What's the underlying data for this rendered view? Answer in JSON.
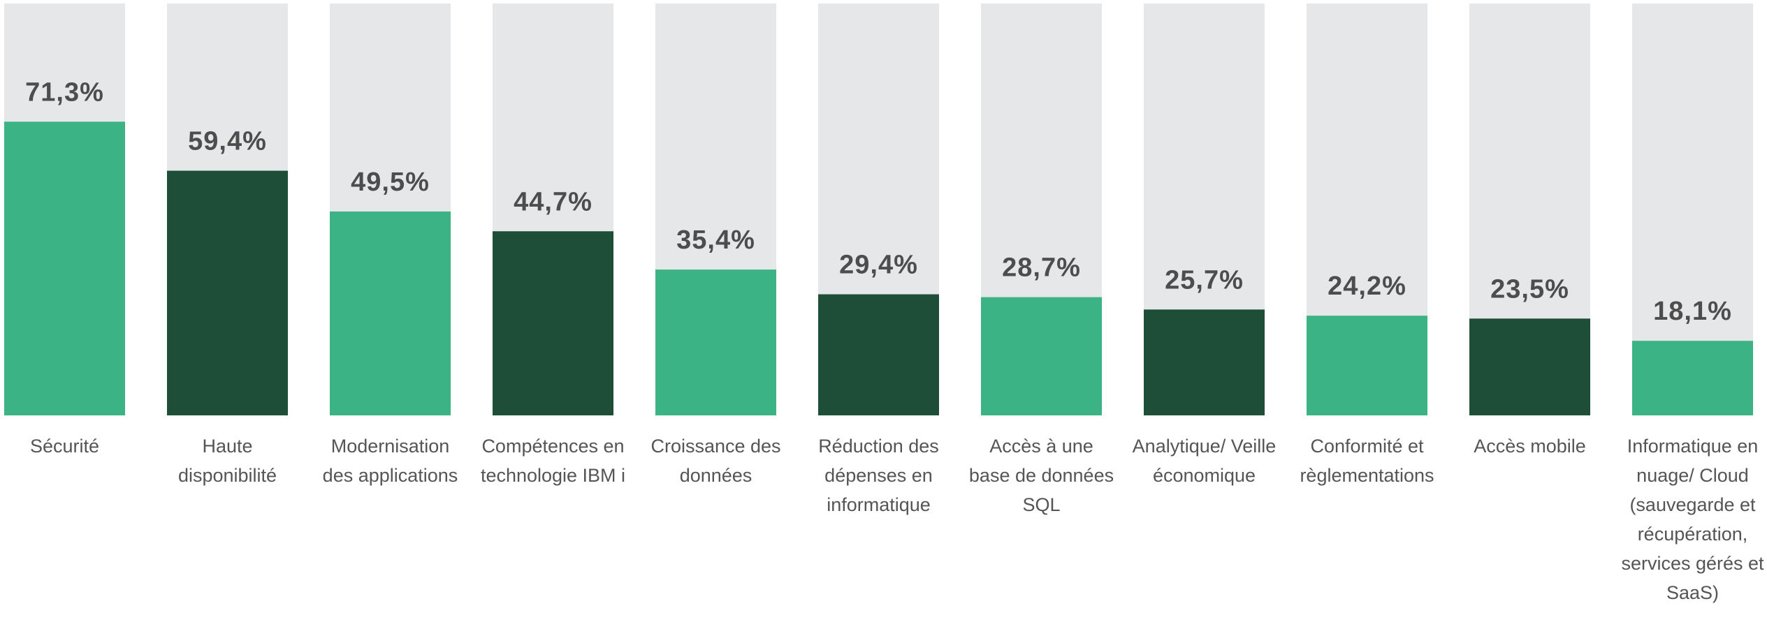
{
  "chart_data": {
    "type": "bar",
    "categories": [
      "Sécurité",
      "Haute disponibilité",
      "Modernisation des applications",
      "Compétences en technologie IBM i",
      "Croissance des données",
      "Réduction des dépenses en informatique",
      "Accès à une base de données SQL",
      "Analytique/ Veille économique",
      "Conformité et règlementations",
      "Accès mobile",
      "Informatique en nuage/ Cloud (sauvegarde et récupération, services gérés et SaaS)"
    ],
    "values": [
      71.3,
      59.4,
      49.5,
      44.7,
      35.4,
      29.4,
      28.7,
      25.7,
      24.2,
      23.5,
      18.1
    ],
    "value_labels": [
      "71,3%",
      "59,4%",
      "49,5%",
      "44,7%",
      "35,4%",
      "29,4%",
      "28,7%",
      "25,7%",
      "24,2%",
      "23,5%",
      "18,1%"
    ],
    "colors": [
      "#3bb384",
      "#1e4d38",
      "#3bb384",
      "#1e4d38",
      "#3bb384",
      "#1e4d38",
      "#3bb384",
      "#1e4d38",
      "#3bb384",
      "#1e4d38",
      "#3bb384"
    ],
    "background_color": "#e6e7e8",
    "ylim": [
      0,
      100
    ]
  }
}
